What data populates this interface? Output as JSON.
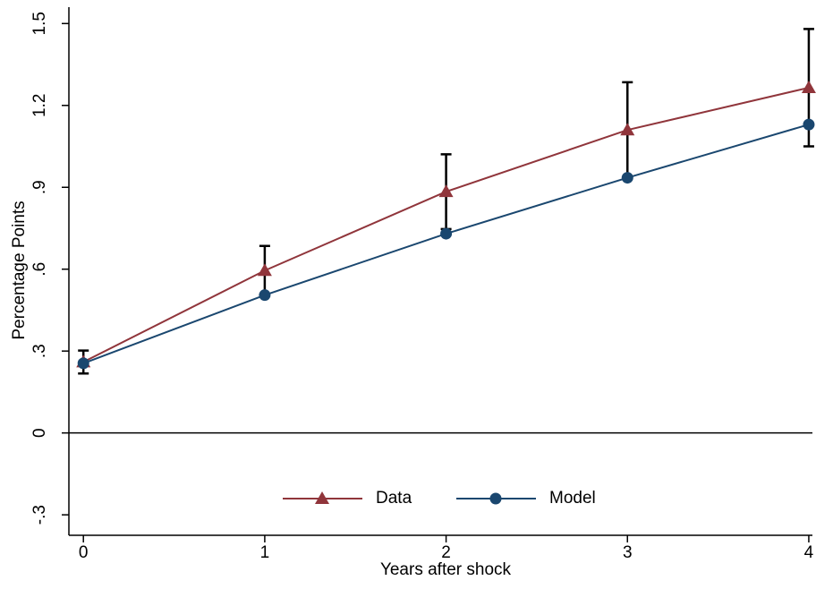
{
  "chart_data": {
    "type": "line",
    "x_label": "Years after shock",
    "y_label": "Percentage Points",
    "x": [
      0,
      1,
      2,
      3,
      4
    ],
    "series": [
      {
        "name": "Data",
        "color": "#90353b",
        "marker": "triangle",
        "values": [
          0.26,
          0.595,
          0.884,
          1.11,
          1.265
        ],
        "errors": [
          0.042,
          0.09,
          0.137,
          0.175,
          0.215
        ]
      },
      {
        "name": "Model",
        "color": "#1a476f",
        "marker": "circle",
        "values": [
          0.255,
          0.505,
          0.73,
          0.935,
          1.13
        ]
      }
    ],
    "error_color": "#000000",
    "xlim": [
      -0.08,
      4.02
    ],
    "xticks": [
      0,
      1,
      2,
      3,
      4
    ],
    "ylim": [
      -0.375,
      1.56
    ],
    "yticks": [
      {
        "value": -0.3,
        "label": "-.3"
      },
      0,
      {
        "value": 0.3,
        "label": ".3"
      },
      {
        "value": 0.6,
        "label": ".6"
      },
      {
        "value": 0.9,
        "label": ".9"
      },
      1.2,
      1.5
    ],
    "yline": 0,
    "legend": "bottom"
  }
}
